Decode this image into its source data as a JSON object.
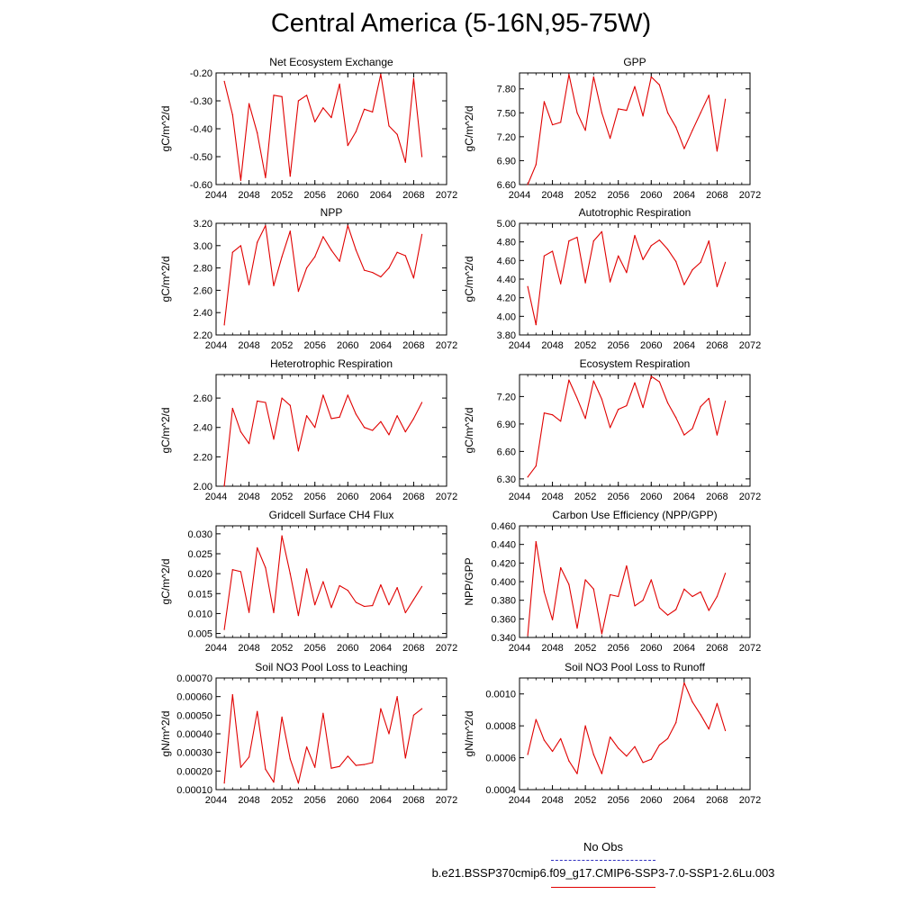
{
  "title": "Central America (5-16N,95-75W)",
  "legend": {
    "obs_label": "No Obs",
    "run_label": "b.e21.BSSP370cmip6.f09_g17.CMIP6-SSP3-7.0-SSP1-2.6Lu.003",
    "obs_color": "#3030c0",
    "run_color": "#e00000"
  },
  "chart_data": [
    {
      "type": "line",
      "title": "Net Ecosystem Exchange",
      "ylabel": "gC/m^2/d",
      "xlim": [
        2044,
        2072
      ],
      "ylim": [
        -0.6,
        -0.2
      ],
      "xticks": [
        "2044",
        "2048",
        "2052",
        "2056",
        "2060",
        "2064",
        "2068",
        "2072"
      ],
      "yticks": [
        "-0.60",
        "-0.50",
        "-0.40",
        "-0.30",
        "-0.20"
      ],
      "ytick_values": [
        -0.6,
        -0.5,
        -0.4,
        -0.3,
        -0.2
      ],
      "x": [
        2045,
        2046,
        2047,
        2048,
        2049,
        2050,
        2051,
        2052,
        2053,
        2054,
        2055,
        2056,
        2057,
        2058,
        2059,
        2060,
        2061,
        2062,
        2063,
        2064,
        2065,
        2066,
        2067,
        2068,
        2069
      ],
      "values": [
        -0.23,
        -0.35,
        -0.585,
        -0.31,
        -0.415,
        -0.575,
        -0.28,
        -0.285,
        -0.57,
        -0.3,
        -0.28,
        -0.375,
        -0.325,
        -0.36,
        -0.24,
        -0.46,
        -0.41,
        -0.33,
        -0.34,
        -0.205,
        -0.39,
        -0.42,
        -0.52,
        -0.22,
        -0.5
      ]
    },
    {
      "type": "line",
      "title": "GPP",
      "ylabel": "gC/m^2/d",
      "xlim": [
        2044,
        2072
      ],
      "ylim": [
        6.6,
        8.0
      ],
      "xticks": [
        "2044",
        "2048",
        "2052",
        "2056",
        "2060",
        "2064",
        "2068",
        "2072"
      ],
      "yticks": [
        "6.60",
        "6.90",
        "7.20",
        "7.50",
        "7.80"
      ],
      "ytick_values": [
        6.6,
        6.9,
        7.2,
        7.5,
        7.8
      ],
      "x": [
        2045,
        2046,
        2047,
        2048,
        2049,
        2050,
        2051,
        2052,
        2053,
        2054,
        2055,
        2056,
        2057,
        2058,
        2059,
        2060,
        2061,
        2062,
        2063,
        2064,
        2065,
        2066,
        2067,
        2068,
        2069
      ],
      "values": [
        6.6,
        6.85,
        7.64,
        7.35,
        7.38,
        7.98,
        7.5,
        7.28,
        7.95,
        7.5,
        7.18,
        7.55,
        7.53,
        7.83,
        7.46,
        7.95,
        7.85,
        7.5,
        7.32,
        7.05,
        7.28,
        7.5,
        7.72,
        7.02,
        7.67
      ]
    },
    {
      "type": "line",
      "title": "NPP",
      "ylabel": "gC/m^2/d",
      "xlim": [
        2044,
        2072
      ],
      "ylim": [
        2.2,
        3.2
      ],
      "xticks": [
        "2044",
        "2048",
        "2052",
        "2056",
        "2060",
        "2064",
        "2068",
        "2072"
      ],
      "yticks": [
        "2.20",
        "2.40",
        "2.60",
        "2.80",
        "3.00",
        "3.20"
      ],
      "ytick_values": [
        2.2,
        2.4,
        2.6,
        2.8,
        3.0,
        3.2
      ],
      "x": [
        2045,
        2046,
        2047,
        2048,
        2049,
        2050,
        2051,
        2052,
        2053,
        2054,
        2055,
        2056,
        2057,
        2058,
        2059,
        2060,
        2061,
        2062,
        2063,
        2064,
        2065,
        2066,
        2067,
        2068,
        2069
      ],
      "values": [
        2.29,
        2.94,
        3.0,
        2.65,
        3.03,
        3.18,
        2.64,
        2.9,
        3.13,
        2.59,
        2.8,
        2.9,
        3.08,
        2.96,
        2.86,
        3.18,
        2.96,
        2.78,
        2.76,
        2.72,
        2.8,
        2.94,
        2.91,
        2.71,
        3.1
      ]
    },
    {
      "type": "line",
      "title": "Autotrophic Respiration",
      "ylabel": "gC/m^2/d",
      "xlim": [
        2044,
        2072
      ],
      "ylim": [
        3.8,
        5.0
      ],
      "xticks": [
        "2044",
        "2048",
        "2052",
        "2056",
        "2060",
        "2064",
        "2068",
        "2072"
      ],
      "yticks": [
        "3.80",
        "4.00",
        "4.20",
        "4.40",
        "4.60",
        "4.80",
        "5.00"
      ],
      "ytick_values": [
        3.8,
        4.0,
        4.2,
        4.4,
        4.6,
        4.8,
        5.0
      ],
      "x": [
        2045,
        2046,
        2047,
        2048,
        2049,
        2050,
        2051,
        2052,
        2053,
        2054,
        2055,
        2056,
        2057,
        2058,
        2059,
        2060,
        2061,
        2062,
        2063,
        2064,
        2065,
        2066,
        2067,
        2068,
        2069
      ],
      "values": [
        4.32,
        3.91,
        4.65,
        4.7,
        4.35,
        4.81,
        4.85,
        4.36,
        4.81,
        4.91,
        4.37,
        4.65,
        4.47,
        4.87,
        4.61,
        4.76,
        4.82,
        4.72,
        4.59,
        4.34,
        4.5,
        4.58,
        4.81,
        4.32,
        4.58
      ]
    },
    {
      "type": "line",
      "title": "Heterotrophic Respiration",
      "ylabel": "gC/m^2/d",
      "xlim": [
        2044,
        2072
      ],
      "ylim": [
        2.0,
        2.76
      ],
      "xticks": [
        "2044",
        "2048",
        "2052",
        "2056",
        "2060",
        "2064",
        "2068",
        "2072"
      ],
      "yticks": [
        "2.00",
        "2.20",
        "2.40",
        "2.60"
      ],
      "ytick_values": [
        2.0,
        2.2,
        2.4,
        2.6
      ],
      "x": [
        2045,
        2046,
        2047,
        2048,
        2049,
        2050,
        2051,
        2052,
        2053,
        2054,
        2055,
        2056,
        2057,
        2058,
        2059,
        2060,
        2061,
        2062,
        2063,
        2064,
        2065,
        2066,
        2067,
        2068,
        2069
      ],
      "values": [
        2.0,
        2.53,
        2.37,
        2.29,
        2.58,
        2.57,
        2.32,
        2.6,
        2.55,
        2.24,
        2.48,
        2.4,
        2.62,
        2.46,
        2.47,
        2.62,
        2.49,
        2.4,
        2.38,
        2.44,
        2.35,
        2.48,
        2.37,
        2.46,
        2.57
      ]
    },
    {
      "type": "line",
      "title": "Ecosystem Respiration",
      "ylabel": "gC/m^2/d",
      "xlim": [
        2044,
        2072
      ],
      "ylim": [
        6.22,
        7.44
      ],
      "xticks": [
        "2044",
        "2048",
        "2052",
        "2056",
        "2060",
        "2064",
        "2068",
        "2072"
      ],
      "yticks": [
        "6.30",
        "6.60",
        "6.90",
        "7.20"
      ],
      "ytick_values": [
        6.3,
        6.6,
        6.9,
        7.2
      ],
      "x": [
        2045,
        2046,
        2047,
        2048,
        2049,
        2050,
        2051,
        2052,
        2053,
        2054,
        2055,
        2056,
        2057,
        2058,
        2059,
        2060,
        2061,
        2062,
        2063,
        2064,
        2065,
        2066,
        2067,
        2068,
        2069
      ],
      "values": [
        6.32,
        6.44,
        7.02,
        7.0,
        6.93,
        7.38,
        7.18,
        6.96,
        7.37,
        7.17,
        6.86,
        7.06,
        7.1,
        7.35,
        7.08,
        7.42,
        7.36,
        7.13,
        6.97,
        6.78,
        6.85,
        7.09,
        7.18,
        6.78,
        7.15
      ]
    },
    {
      "type": "line",
      "title": "Gridcell Surface CH4 Flux",
      "ylabel": "gC/m^2/d",
      "xlim": [
        2044,
        2072
      ],
      "ylim": [
        0.004,
        0.032
      ],
      "xticks": [
        "2044",
        "2048",
        "2052",
        "2056",
        "2060",
        "2064",
        "2068",
        "2072"
      ],
      "yticks": [
        "0.005",
        "0.010",
        "0.015",
        "0.020",
        "0.025",
        "0.030"
      ],
      "ytick_values": [
        0.005,
        0.01,
        0.015,
        0.02,
        0.025,
        0.03
      ],
      "x": [
        2045,
        2046,
        2047,
        2048,
        2049,
        2050,
        2051,
        2052,
        2053,
        2054,
        2055,
        2056,
        2057,
        2058,
        2059,
        2060,
        2061,
        2062,
        2063,
        2064,
        2065,
        2066,
        2067,
        2068,
        2069
      ],
      "values": [
        0.006,
        0.021,
        0.0205,
        0.0103,
        0.0265,
        0.0215,
        0.0102,
        0.0295,
        0.02,
        0.0095,
        0.0212,
        0.0122,
        0.018,
        0.0115,
        0.017,
        0.0158,
        0.0128,
        0.0118,
        0.012,
        0.0172,
        0.0122,
        0.0165,
        0.0102,
        0.0135,
        0.0168
      ]
    },
    {
      "type": "line",
      "title": "Carbon Use Efficiency (NPP/GPP)",
      "ylabel": "NPP/GPP",
      "xlim": [
        2044,
        2072
      ],
      "ylim": [
        0.34,
        0.46
      ],
      "xticks": [
        "2044",
        "2048",
        "2052",
        "2056",
        "2060",
        "2064",
        "2068",
        "2072"
      ],
      "yticks": [
        "0.340",
        "0.360",
        "0.380",
        "0.400",
        "0.420",
        "0.440",
        "0.460"
      ],
      "ytick_values": [
        0.34,
        0.36,
        0.38,
        0.4,
        0.42,
        0.44,
        0.46
      ],
      "x": [
        2045,
        2046,
        2047,
        2048,
        2049,
        2050,
        2051,
        2052,
        2053,
        2054,
        2055,
        2056,
        2057,
        2058,
        2059,
        2060,
        2061,
        2062,
        2063,
        2064,
        2065,
        2066,
        2067,
        2068,
        2069
      ],
      "values": [
        0.342,
        0.443,
        0.389,
        0.359,
        0.415,
        0.397,
        0.35,
        0.402,
        0.392,
        0.344,
        0.386,
        0.384,
        0.417,
        0.374,
        0.38,
        0.402,
        0.372,
        0.364,
        0.37,
        0.392,
        0.384,
        0.389,
        0.369,
        0.384,
        0.409
      ]
    },
    {
      "type": "line",
      "title": "Soil NO3 Pool Loss to Leaching",
      "ylabel": "gN/m^2/d",
      "xlim": [
        2044,
        2072
      ],
      "ylim": [
        0.0001,
        0.0007
      ],
      "xticks": [
        "2044",
        "2048",
        "2052",
        "2056",
        "2060",
        "2064",
        "2068",
        "2072"
      ],
      "yticks": [
        "0.00010",
        "0.00020",
        "0.00030",
        "0.00040",
        "0.00050",
        "0.00060",
        "0.00070"
      ],
      "ytick_values": [
        0.0001,
        0.0002,
        0.0003,
        0.0004,
        0.0005,
        0.0006,
        0.0007
      ],
      "x": [
        2045,
        2046,
        2047,
        2048,
        2049,
        2050,
        2051,
        2052,
        2053,
        2054,
        2055,
        2056,
        2057,
        2058,
        2059,
        2060,
        2061,
        2062,
        2063,
        2064,
        2065,
        2066,
        2067,
        2068,
        2069
      ],
      "values": [
        0.000135,
        0.00061,
        0.00022,
        0.000275,
        0.00052,
        0.00021,
        0.00014,
        0.00049,
        0.000265,
        0.000135,
        0.00033,
        0.00022,
        0.00051,
        0.000215,
        0.000225,
        0.00028,
        0.00023,
        0.000235,
        0.000245,
        0.000535,
        0.0004,
        0.0006,
        0.00027,
        0.0005,
        0.000535
      ]
    },
    {
      "type": "line",
      "title": "Soil NO3 Pool Loss to Runoff",
      "ylabel": "gN/m^2/d",
      "xlim": [
        2044,
        2072
      ],
      "ylim": [
        0.0004,
        0.0011
      ],
      "xticks": [
        "2044",
        "2048",
        "2052",
        "2056",
        "2060",
        "2064",
        "2068",
        "2072"
      ],
      "yticks": [
        "0.0004",
        "0.0006",
        "0.0008",
        "0.0010"
      ],
      "ytick_values": [
        0.0004,
        0.0006,
        0.0008,
        0.001
      ],
      "x": [
        2045,
        2046,
        2047,
        2048,
        2049,
        2050,
        2051,
        2052,
        2053,
        2054,
        2055,
        2056,
        2057,
        2058,
        2059,
        2060,
        2061,
        2062,
        2063,
        2064,
        2065,
        2066,
        2067,
        2068,
        2069
      ],
      "values": [
        0.00062,
        0.00084,
        0.00071,
        0.00064,
        0.00072,
        0.00058,
        0.0005,
        0.0008,
        0.00062,
        0.0005,
        0.00073,
        0.00066,
        0.00061,
        0.00067,
        0.00057,
        0.00059,
        0.00068,
        0.00072,
        0.00082,
        0.00107,
        0.00095,
        0.00087,
        0.00078,
        0.00094,
        0.00077
      ]
    }
  ]
}
